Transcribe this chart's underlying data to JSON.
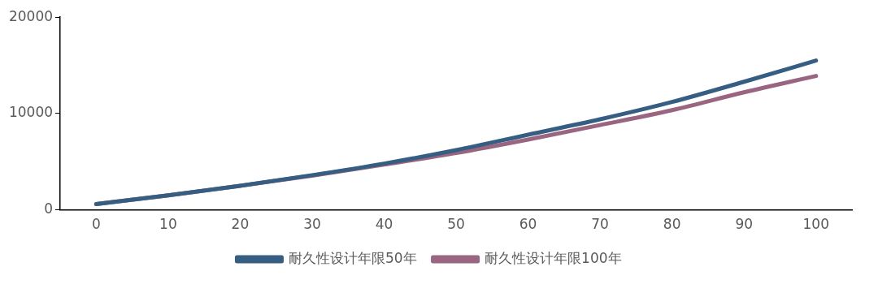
{
  "chart_data": {
    "type": "line",
    "x": [
      0,
      10,
      20,
      30,
      40,
      50,
      60,
      70,
      80,
      90,
      100
    ],
    "series": [
      {
        "name": "耐久性设计年限50年",
        "color": "#365e82",
        "values": [
          600,
          1500,
          2500,
          3600,
          4800,
          6200,
          7800,
          9400,
          11200,
          13300,
          15500
        ]
      },
      {
        "name": "耐久性设计年限100年",
        "color": "#9a6580",
        "values": [
          600,
          1500,
          2500,
          3550,
          4700,
          5900,
          7300,
          8800,
          10350,
          12200,
          13900
        ]
      }
    ],
    "xlim": [
      -5,
      105
    ],
    "xticks": [
      0,
      10,
      20,
      30,
      40,
      50,
      60,
      70,
      80,
      90,
      100
    ],
    "ylim": [
      0,
      20000
    ],
    "yticks": [
      0,
      10000,
      20000
    ],
    "grid": false,
    "legend": "bottom",
    "marker": "none",
    "line_style": "solid"
  }
}
